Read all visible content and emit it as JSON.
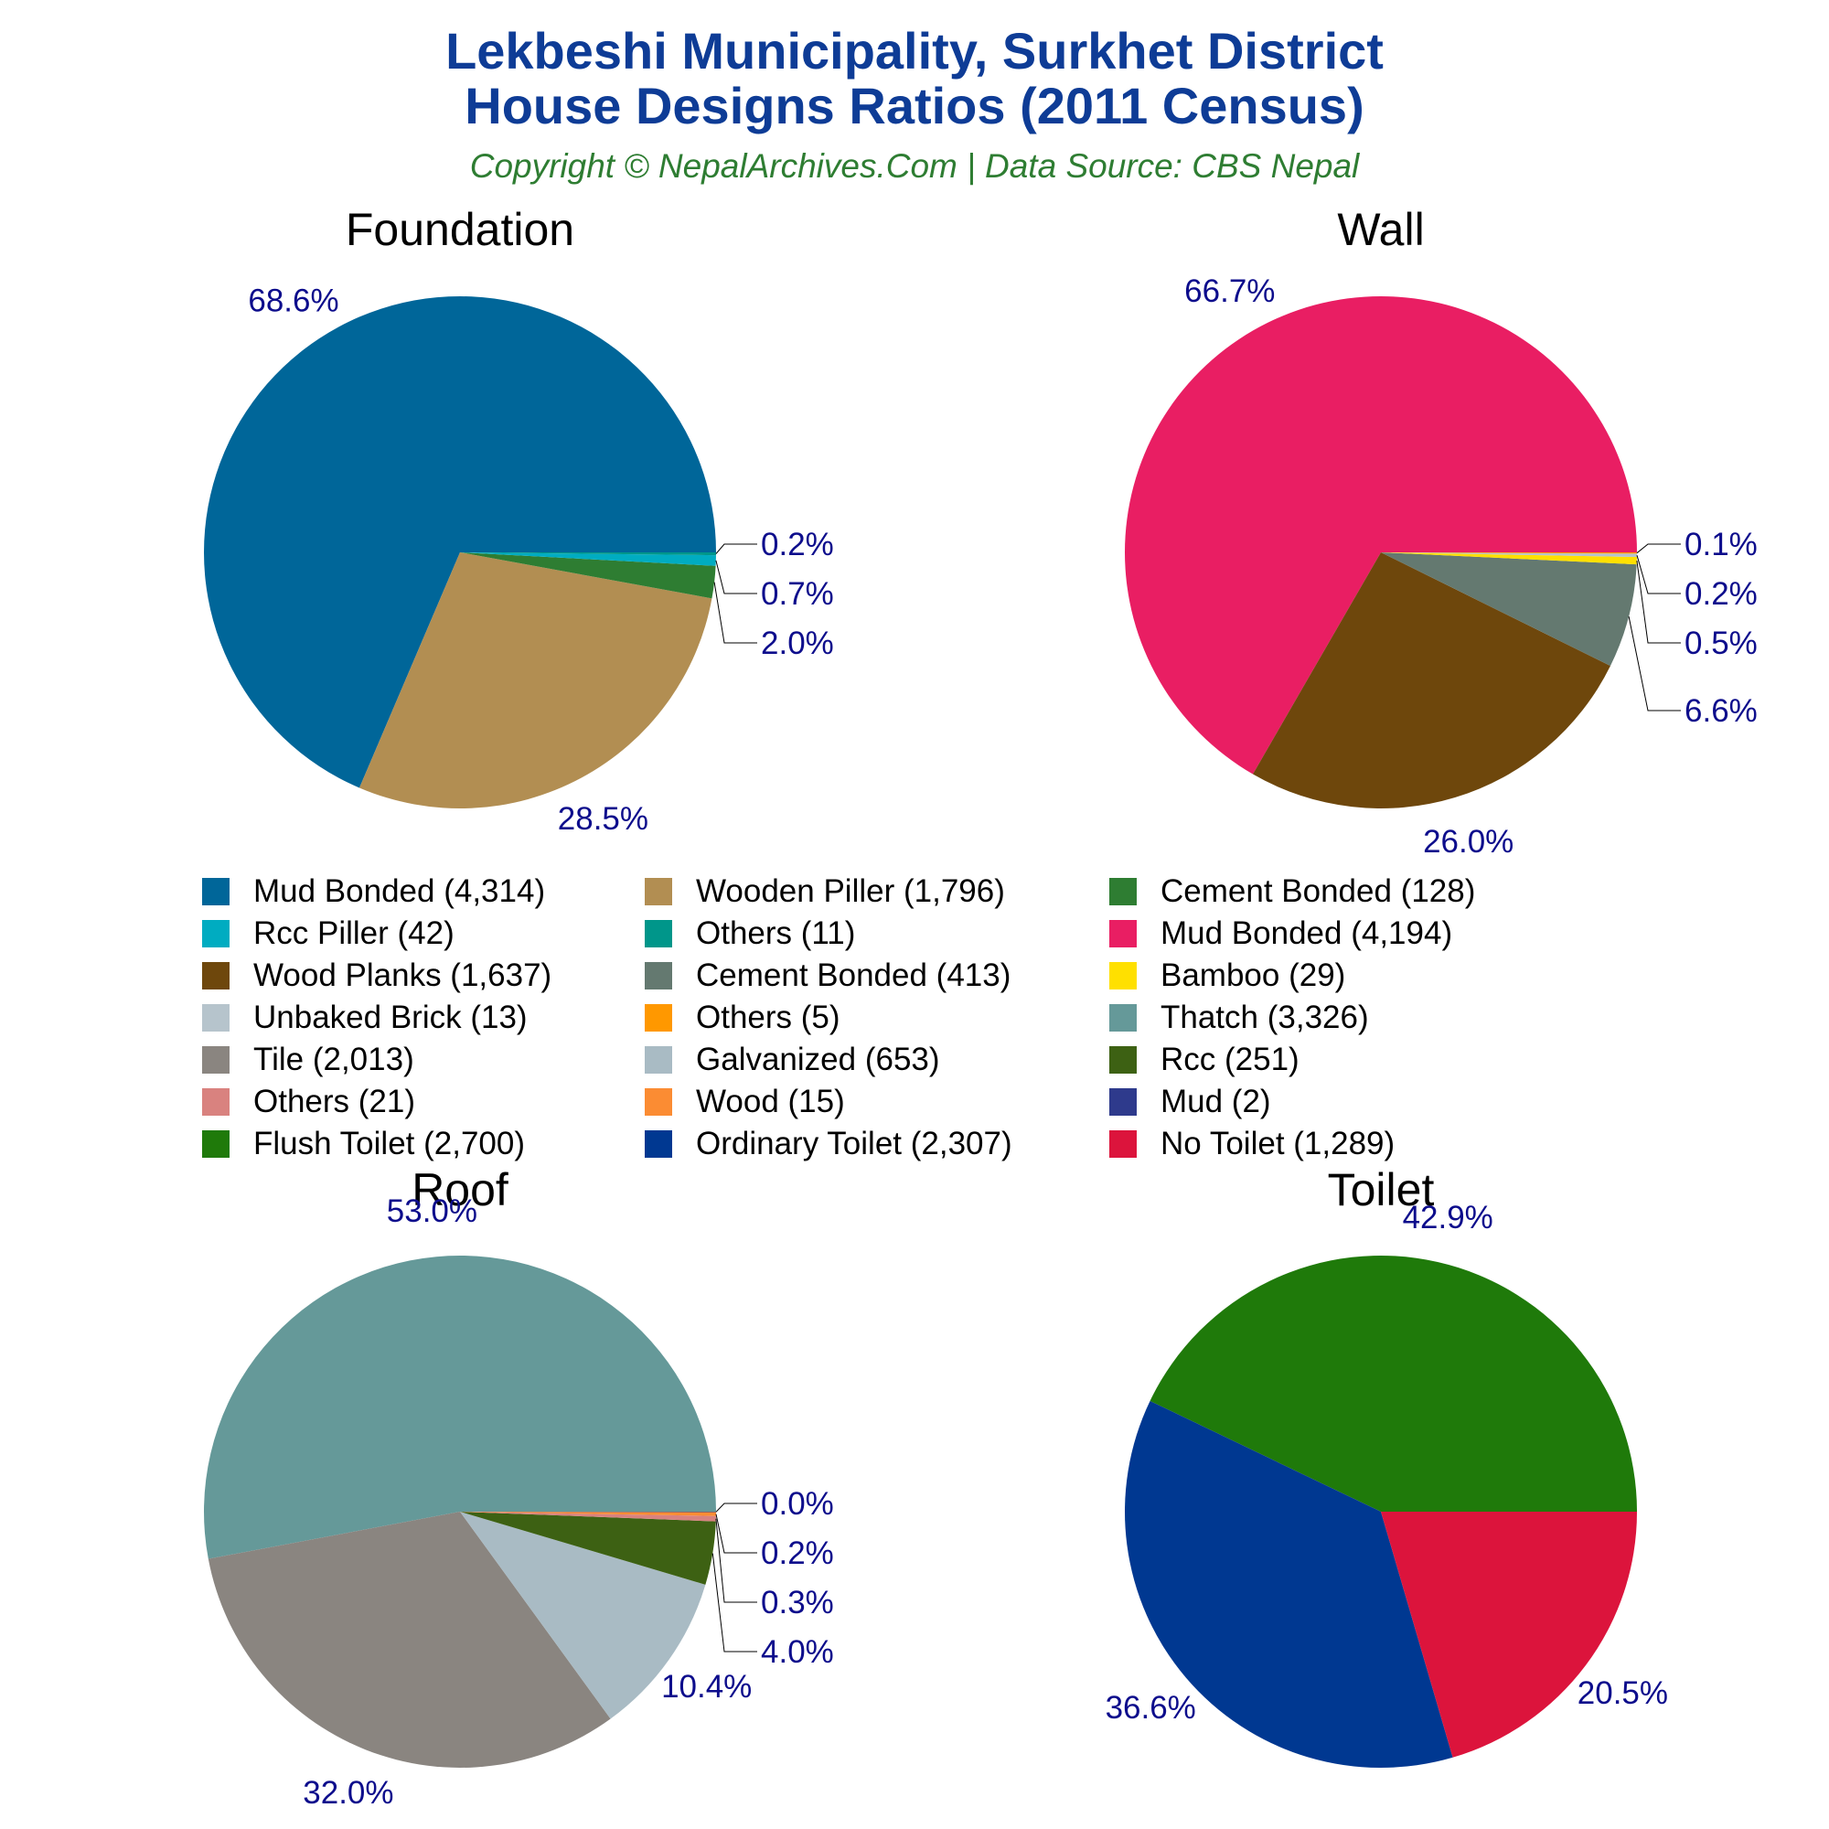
{
  "header": {
    "title_line1": "Lekbeshi Municipality, Surkhet District",
    "title_line2": "House Designs Ratios (2011 Census)",
    "subtitle": "Copyright © NepalArchives.Com | Data Source: CBS Nepal"
  },
  "colors": {
    "title": "#0e3c96",
    "subtitle": "#2e7d32",
    "percent_label": "#0d0d8c"
  },
  "legend": {
    "placement": "center",
    "columns": 3,
    "items": [
      {
        "label": "Mud Bonded (4,314)",
        "color": "#006699"
      },
      {
        "label": "Wooden Piller (1,796)",
        "color": "#b28e52"
      },
      {
        "label": "Cement Bonded (128)",
        "color": "#2e7d32"
      },
      {
        "label": "Rcc Piller (42)",
        "color": "#00acc1"
      },
      {
        "label": "Others (11)",
        "color": "#00968a"
      },
      {
        "label": "Mud Bonded (4,194)",
        "color": "#e91e63"
      },
      {
        "label": "Wood Planks (1,637)",
        "color": "#6e470c"
      },
      {
        "label": "Cement Bonded (413)",
        "color": "#647970"
      },
      {
        "label": "Bamboo (29)",
        "color": "#ffe000"
      },
      {
        "label": "Unbaked Brick (13)",
        "color": "#b6c4cc"
      },
      {
        "label": "Others (5)",
        "color": "#ff9800"
      },
      {
        "label": "Thatch (3,326)",
        "color": "#659999"
      },
      {
        "label": "Tile (2,013)",
        "color": "#8a8580"
      },
      {
        "label": "Galvanized (653)",
        "color": "#a9bbc4"
      },
      {
        "label": "Rcc (251)",
        "color": "#3d6113"
      },
      {
        "label": "Others (21)",
        "color": "#d9827f"
      },
      {
        "label": "Wood (15)",
        "color": "#fb8c33"
      },
      {
        "label": "Mud (2)",
        "color": "#2e3a8c"
      },
      {
        "label": "Flush Toilet (2,700)",
        "color": "#1f7a0a"
      },
      {
        "label": "Ordinary Toilet (2,307)",
        "color": "#003891"
      },
      {
        "label": "No Toilet (1,289)",
        "color": "#dc143c"
      }
    ]
  },
  "chart_data": [
    {
      "type": "pie",
      "title": "Foundation",
      "slices": [
        {
          "label": "Mud Bonded",
          "value": 4314,
          "percent_label": "68.6%",
          "color": "#006699"
        },
        {
          "label": "Wooden Piller",
          "value": 1796,
          "percent_label": "28.5%",
          "color": "#b28e52"
        },
        {
          "label": "Cement Bonded",
          "value": 128,
          "percent_label": "2.0%",
          "color": "#2e7d32"
        },
        {
          "label": "Rcc Piller",
          "value": 42,
          "percent_label": "0.7%",
          "color": "#00acc1"
        },
        {
          "label": "Others",
          "value": 11,
          "percent_label": "0.2%",
          "color": "#00968a"
        }
      ]
    },
    {
      "type": "pie",
      "title": "Wall",
      "slices": [
        {
          "label": "Mud Bonded",
          "value": 4194,
          "percent_label": "66.7%",
          "color": "#e91e63"
        },
        {
          "label": "Wood Planks",
          "value": 1637,
          "percent_label": "26.0%",
          "color": "#6e470c"
        },
        {
          "label": "Cement Bonded",
          "value": 413,
          "percent_label": "6.6%",
          "color": "#647970"
        },
        {
          "label": "Bamboo",
          "value": 29,
          "percent_label": "0.5%",
          "color": "#ffe000"
        },
        {
          "label": "Unbaked Brick",
          "value": 13,
          "percent_label": "0.2%",
          "color": "#b6c4cc"
        },
        {
          "label": "Others",
          "value": 5,
          "percent_label": "0.1%",
          "color": "#ff9800"
        }
      ]
    },
    {
      "type": "pie",
      "title": "Roof",
      "slices": [
        {
          "label": "Thatch",
          "value": 3326,
          "percent_label": "53.0%",
          "color": "#659999"
        },
        {
          "label": "Tile",
          "value": 2013,
          "percent_label": "32.0%",
          "color": "#8a8580"
        },
        {
          "label": "Galvanized",
          "value": 653,
          "percent_label": "10.4%",
          "color": "#a9bbc4"
        },
        {
          "label": "Rcc",
          "value": 251,
          "percent_label": "4.0%",
          "color": "#3d6113"
        },
        {
          "label": "Others",
          "value": 21,
          "percent_label": "0.3%",
          "color": "#d9827f"
        },
        {
          "label": "Wood",
          "value": 15,
          "percent_label": "0.2%",
          "color": "#fb8c33"
        },
        {
          "label": "Mud",
          "value": 2,
          "percent_label": "0.0%",
          "color": "#2e3a8c"
        }
      ]
    },
    {
      "type": "pie",
      "title": "Toilet",
      "slices": [
        {
          "label": "Flush Toilet",
          "value": 2700,
          "percent_label": "42.9%",
          "color": "#1f7a0a"
        },
        {
          "label": "Ordinary Toilet",
          "value": 2307,
          "percent_label": "36.6%",
          "color": "#003891"
        },
        {
          "label": "No Toilet",
          "value": 1289,
          "percent_label": "20.5%",
          "color": "#dc143c"
        }
      ]
    }
  ]
}
